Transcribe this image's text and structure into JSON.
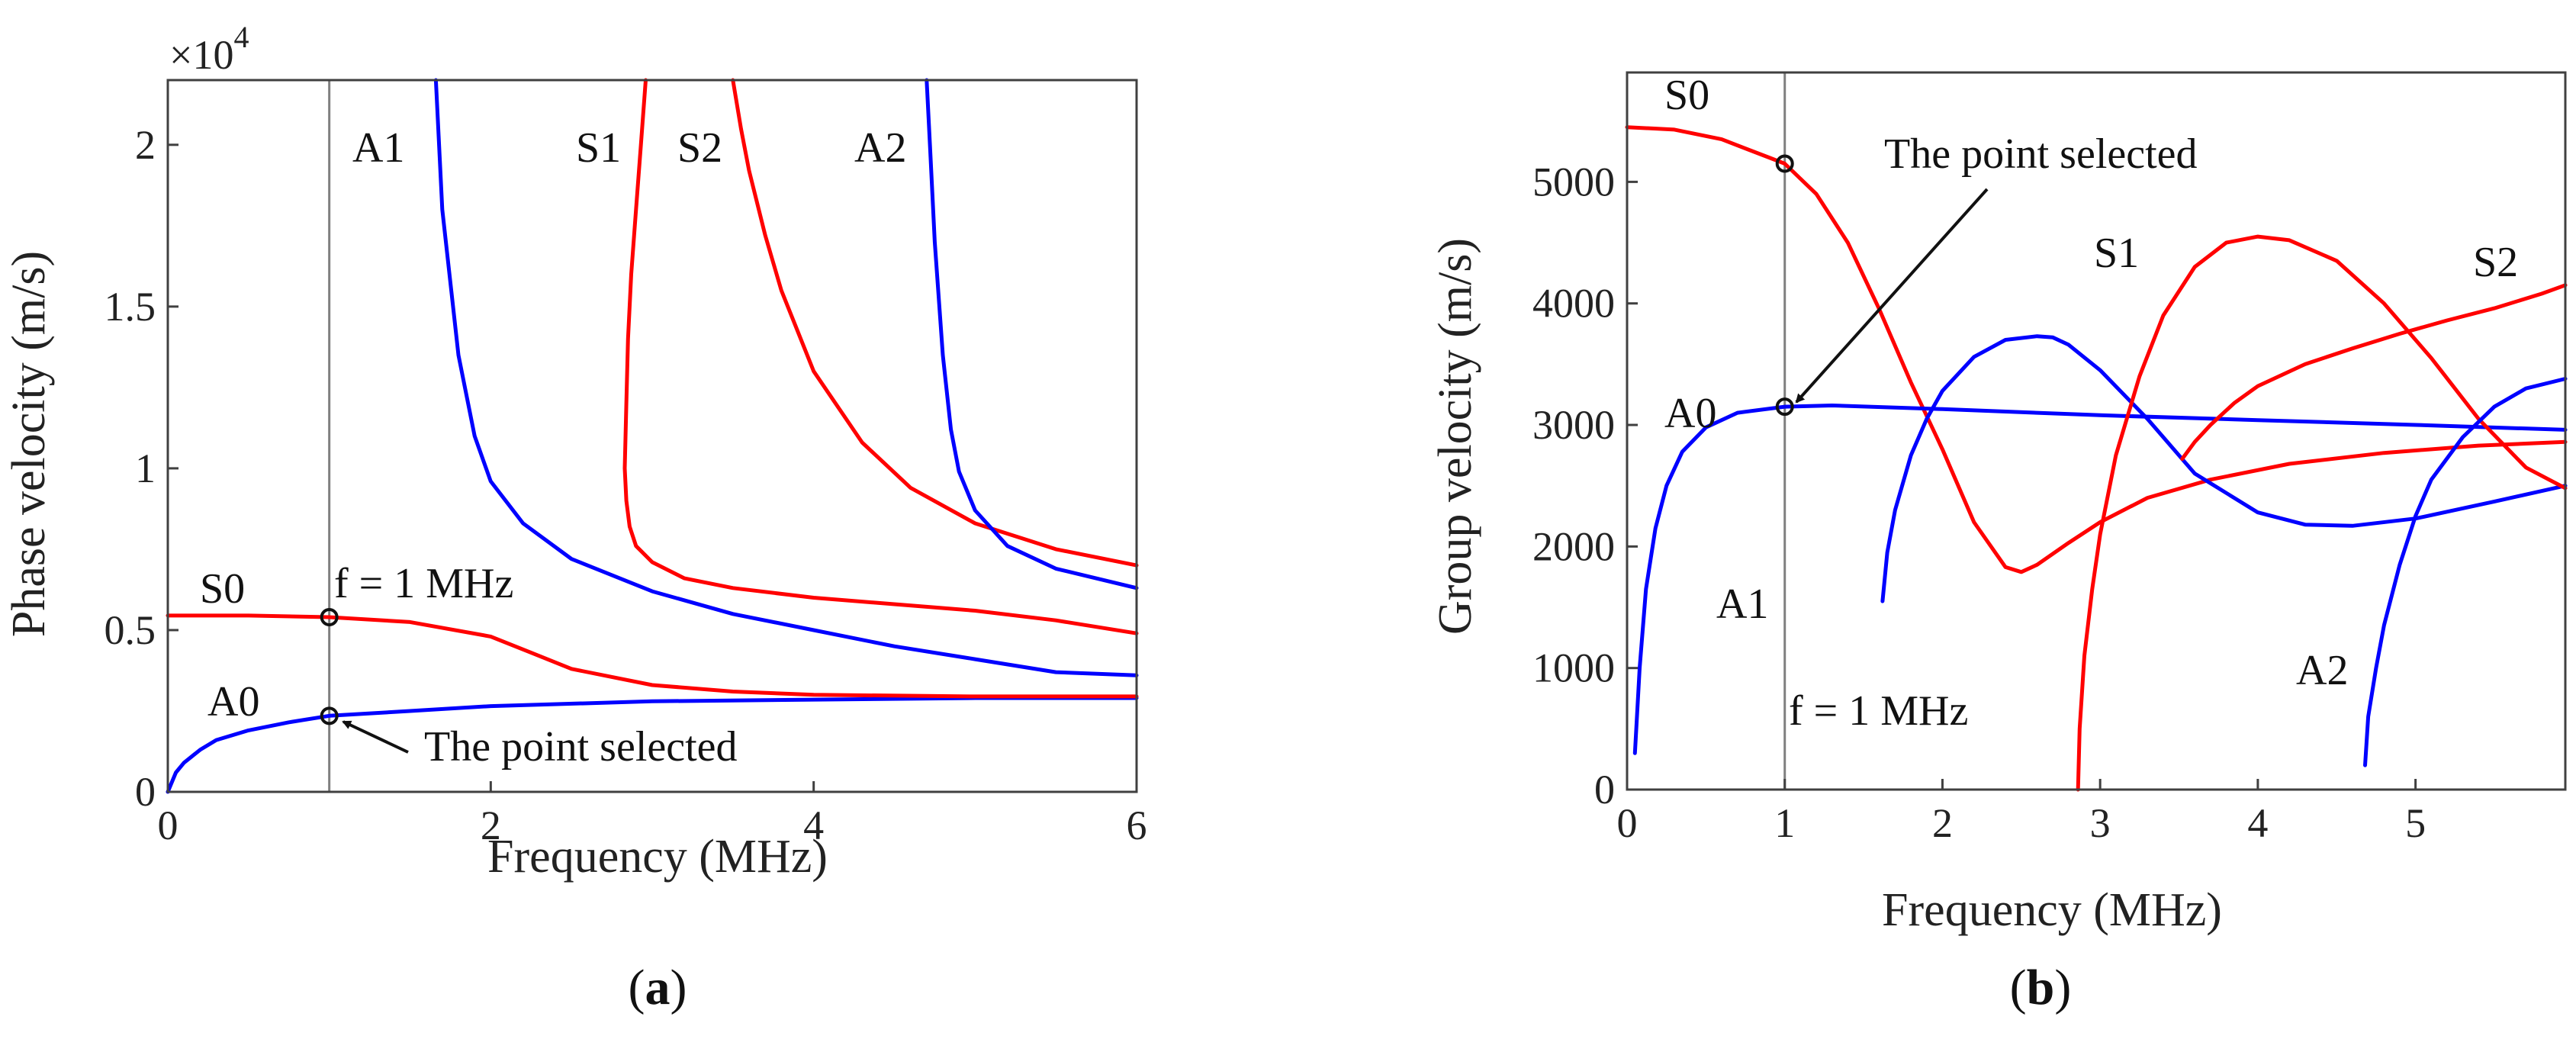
{
  "chart_data": [
    {
      "type": "line",
      "panel_label": "a",
      "xlabel": "Frequency (MHz)",
      "ylabel": "Phase velocity (m/s)",
      "y_multiplier": "×10^4",
      "multiplier_base": "×10",
      "multiplier_exp": "4",
      "xlim": [
        0,
        6
      ],
      "ylim": [
        0,
        2.2
      ],
      "xticks": [
        0,
        2,
        4,
        6
      ],
      "xtick_labels": [
        "0",
        "2",
        "4",
        "6"
      ],
      "yticks": [
        0,
        0.5,
        1,
        1.5,
        2
      ],
      "ytick_labels": [
        "0",
        "0.5",
        "1",
        "1.5",
        "2"
      ],
      "vline_x": 1,
      "series": [
        {
          "name": "A0",
          "color": "#0000ff",
          "x": [
            0,
            0.05,
            0.1,
            0.2,
            0.3,
            0.5,
            0.75,
            1,
            1.5,
            2,
            3,
            4,
            5,
            6
          ],
          "y": [
            0,
            0.06,
            0.09,
            0.13,
            0.16,
            0.19,
            0.215,
            0.235,
            0.25,
            0.265,
            0.28,
            0.285,
            0.29,
            0.29
          ]
        },
        {
          "name": "S0",
          "color": "#ff0000",
          "x": [
            0,
            0.5,
            1,
            1.5,
            2,
            2.25,
            2.5,
            3,
            3.5,
            4,
            5,
            6
          ],
          "y": [
            0.545,
            0.545,
            0.54,
            0.525,
            0.48,
            0.43,
            0.38,
            0.33,
            0.31,
            0.3,
            0.295,
            0.295
          ]
        },
        {
          "name": "A1",
          "color": "#0000ff",
          "x": [
            1.66,
            1.7,
            1.8,
            1.9,
            2.0,
            2.2,
            2.5,
            3,
            3.5,
            4,
            4.5,
            5,
            5.5,
            6
          ],
          "y": [
            2.2,
            1.8,
            1.35,
            1.1,
            0.96,
            0.83,
            0.72,
            0.62,
            0.55,
            0.5,
            0.45,
            0.41,
            0.37,
            0.36
          ]
        },
        {
          "name": "S1",
          "color": "#ff0000",
          "x": [
            2.96,
            2.93,
            2.9,
            2.87,
            2.85,
            2.84,
            2.83,
            2.84,
            2.86,
            2.9,
            3.0,
            3.2,
            3.5,
            4,
            4.5,
            5,
            5.5,
            6
          ],
          "y": [
            2.2,
            2.0,
            1.8,
            1.6,
            1.4,
            1.2,
            1.0,
            0.9,
            0.82,
            0.76,
            0.71,
            0.66,
            0.63,
            0.6,
            0.58,
            0.56,
            0.53,
            0.49
          ]
        },
        {
          "name": "S2",
          "color": "#ff0000",
          "x": [
            3.5,
            3.55,
            3.6,
            3.7,
            3.8,
            4.0,
            4.3,
            4.6,
            5.0,
            5.5,
            6.0
          ],
          "y": [
            2.2,
            2.05,
            1.92,
            1.72,
            1.55,
            1.3,
            1.08,
            0.94,
            0.83,
            0.75,
            0.7
          ]
        },
        {
          "name": "A2",
          "color": "#0000ff",
          "x": [
            4.7,
            4.72,
            4.75,
            4.8,
            4.85,
            4.9,
            5.0,
            5.2,
            5.5,
            6.0
          ],
          "y": [
            2.2,
            2.0,
            1.7,
            1.35,
            1.12,
            0.99,
            0.87,
            0.76,
            0.69,
            0.63
          ]
        }
      ],
      "markers": [
        {
          "x": 1,
          "y": 0.54
        },
        {
          "x": 1,
          "y": 0.235
        }
      ],
      "curve_labels": [
        "A1",
        "S1",
        "S2",
        "A2",
        "S0",
        "A0"
      ],
      "annotation_freq": "f = 1 MHz",
      "annotation_point": "The point selected"
    },
    {
      "type": "line",
      "panel_label": "b",
      "xlabel": "Frequency (MHz)",
      "ylabel": "Group velocity (m/s)",
      "xlim": [
        0,
        5.95
      ],
      "ylim": [
        0,
        5900
      ],
      "xticks": [
        0,
        1,
        2,
        3,
        4,
        5
      ],
      "xtick_labels": [
        "0",
        "1",
        "2",
        "3",
        "4",
        "5"
      ],
      "yticks": [
        0,
        1000,
        2000,
        3000,
        4000,
        5000
      ],
      "ytick_labels": [
        "0",
        "1000",
        "2000",
        "3000",
        "4000",
        "5000"
      ],
      "vline_x": 1,
      "series": [
        {
          "name": "S0",
          "color": "#ff0000",
          "x": [
            0,
            0.3,
            0.6,
            0.9,
            1.0,
            1.2,
            1.4,
            1.6,
            1.8,
            2.0,
            2.2,
            2.4,
            2.5,
            2.6,
            2.8,
            3.0,
            3.3,
            3.7,
            4.2,
            4.8,
            5.4,
            5.95
          ],
          "y": [
            5450,
            5430,
            5350,
            5200,
            5150,
            4900,
            4500,
            3950,
            3350,
            2800,
            2200,
            1830,
            1790,
            1850,
            2030,
            2200,
            2400,
            2550,
            2680,
            2770,
            2830,
            2860
          ]
        },
        {
          "name": "A0",
          "color": "#0000ff",
          "x": [
            0.05,
            0.08,
            0.12,
            0.18,
            0.25,
            0.35,
            0.5,
            0.7,
            1.0,
            1.3,
            2,
            3,
            4,
            5,
            5.95
          ],
          "y": [
            300,
            1000,
            1650,
            2150,
            2500,
            2780,
            2980,
            3100,
            3150,
            3160,
            3130,
            3080,
            3040,
            3000,
            2960
          ]
        },
        {
          "name": "A1",
          "color": "#0000ff",
          "x": [
            1.62,
            1.65,
            1.7,
            1.8,
            1.9,
            2.0,
            2.2,
            2.4,
            2.6,
            2.7,
            2.8,
            3.0,
            3.3,
            3.6,
            4.0,
            4.3,
            4.6,
            5.0,
            5.5,
            5.95
          ],
          "y": [
            1550,
            1950,
            2300,
            2750,
            3050,
            3280,
            3560,
            3700,
            3730,
            3720,
            3660,
            3450,
            3050,
            2600,
            2280,
            2180,
            2170,
            2230,
            2370,
            2500
          ]
        },
        {
          "name": "S1",
          "color": "#ff0000",
          "x": [
            2.86,
            2.87,
            2.9,
            2.95,
            3.0,
            3.1,
            3.25,
            3.4,
            3.6,
            3.8,
            4.0,
            4.2,
            4.5,
            4.8,
            5.1,
            5.4,
            5.7,
            5.95
          ],
          "y": [
            0,
            500,
            1100,
            1650,
            2100,
            2750,
            3400,
            3900,
            4300,
            4500,
            4550,
            4520,
            4350,
            4000,
            3550,
            3050,
            2650,
            2480
          ]
        },
        {
          "name": "S2",
          "color": "#ff0000",
          "x": [
            3.52,
            3.6,
            3.7,
            3.85,
            4.0,
            4.3,
            4.6,
            4.9,
            5.2,
            5.5,
            5.8,
            5.95
          ],
          "y": [
            2720,
            2860,
            3000,
            3180,
            3320,
            3500,
            3630,
            3750,
            3860,
            3960,
            4080,
            4150
          ]
        },
        {
          "name": "A2",
          "color": "#0000ff",
          "x": [
            4.68,
            4.7,
            4.75,
            4.8,
            4.9,
            5.0,
            5.1,
            5.3,
            5.5,
            5.7,
            5.95
          ],
          "y": [
            200,
            600,
            1000,
            1350,
            1850,
            2250,
            2550,
            2900,
            3150,
            3300,
            3380
          ]
        }
      ],
      "markers": [
        {
          "x": 1,
          "y": 5150
        },
        {
          "x": 1,
          "y": 3150
        }
      ],
      "curve_labels": [
        "S0",
        "A0",
        "A1",
        "S1",
        "S2",
        "A2"
      ],
      "annotation_freq": "f = 1 MHz",
      "annotation_point": "The point selected"
    }
  ],
  "colors": {
    "red": "#ff0000",
    "blue": "#0000ff",
    "axis": "#404040",
    "vline": "#7f7f7f"
  }
}
